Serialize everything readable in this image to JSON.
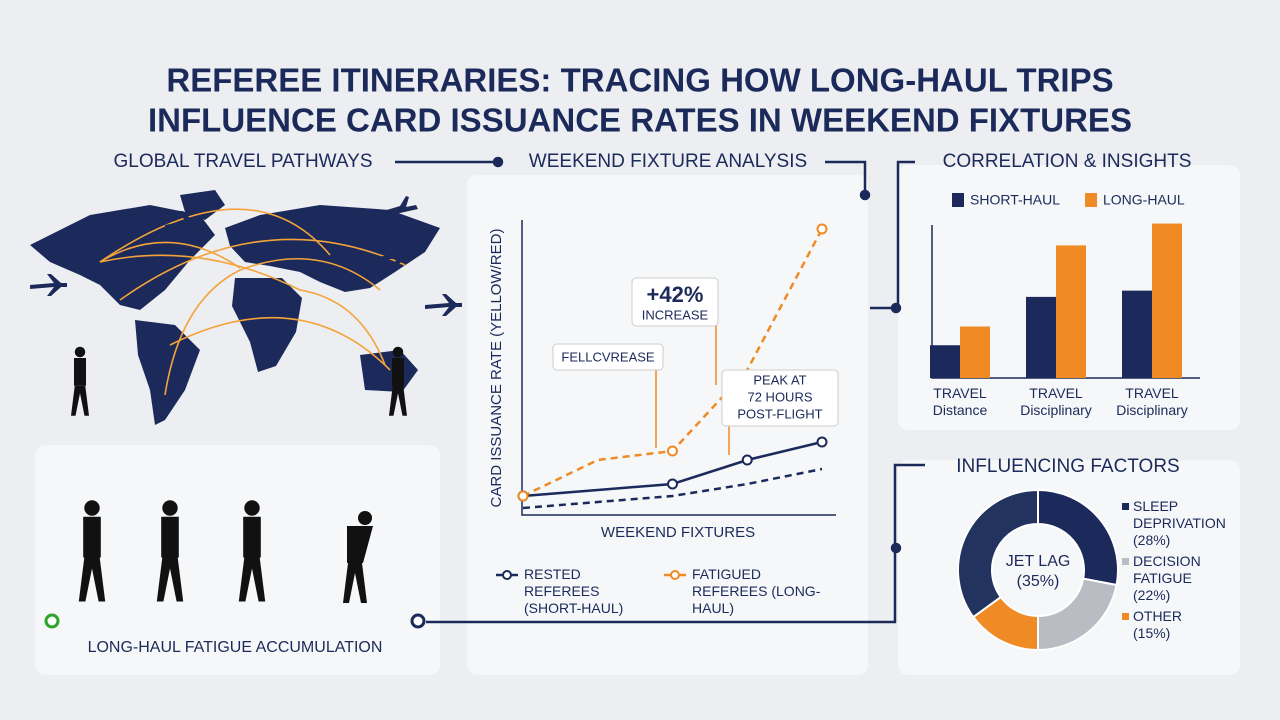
{
  "title_lines": [
    "REFEREE ITINERARIES: TRACING HOW LONG-HAUL TRIPS",
    "INFLUENCE CARD ISSUANCE RATES IN WEEKEND FIXTURES"
  ],
  "sections": {
    "map": "GLOBAL TRAVEL PATHWAYS",
    "fatigue": "LONG-HAUL FATIGUE ACCUMULATION"
  },
  "chart_data": [
    {
      "type": "line",
      "title": "WEEKEND FIXTURE ANALYSIS",
      "y_label": "CARD ISSUANCE RATE (YELLOW/RED)",
      "x_label": "WEEKEND FIXTURES",
      "categories": [
        null,
        null,
        null,
        null,
        null
      ],
      "ylim": [
        0,
        10
      ],
      "annotations": [
        "+42%",
        "INCREASE",
        "FELLCVREASE",
        "PEAK AT",
        "72 HOURS",
        "POST-FLIGHT"
      ],
      "series": [
        {
          "name": "RESTED REFEREES (SHORT-HAUL)",
          "color": "#1b2a5a",
          "style": "solid",
          "values": [
            0.8,
            1.0,
            1.2,
            2.0,
            2.6
          ]
        },
        {
          "color": "#1b2a5a",
          "style": "dashed",
          "values": [
            0.4,
            0.6,
            0.8,
            1.2,
            1.7
          ]
        },
        {
          "name": "FATIGUED REFEREES (LONG-HAUL)",
          "color": "#f08a24",
          "style": "dashed",
          "values": [
            0.8,
            2.0,
            2.3,
            5.0,
            9.7
          ]
        }
      ]
    },
    {
      "type": "bar",
      "title": "CORRELATION & INSIGHTS",
      "categories": [
        "TRAVEL Distance",
        "TRAVEL Disciplinary",
        "TRAVEL Disciplinary"
      ],
      "ylim": [
        0,
        10
      ],
      "series": [
        {
          "name": "SHORT-HAUL",
          "color": "#1b2a5a",
          "values": [
            2.1,
            5.2,
            5.6
          ]
        },
        {
          "name": "LONG-HAUL",
          "color": "#f08a24",
          "values": [
            3.3,
            8.5,
            9.9
          ]
        }
      ]
    },
    {
      "type": "pie",
      "title": "INFLUENCING FACTORS",
      "categories": [
        "SLEEP DEPRIVATION",
        "DECISION FATIGUE",
        "OTHER",
        "JET LAG"
      ],
      "values": [
        28,
        22,
        15,
        35
      ],
      "value_labels": [
        "(28%)",
        "(22%)",
        "(15%)",
        "(35%)"
      ],
      "colors": [
        "#1b2a5a",
        "#b9bdc3",
        "#f08a24",
        "#22335f"
      ]
    }
  ]
}
